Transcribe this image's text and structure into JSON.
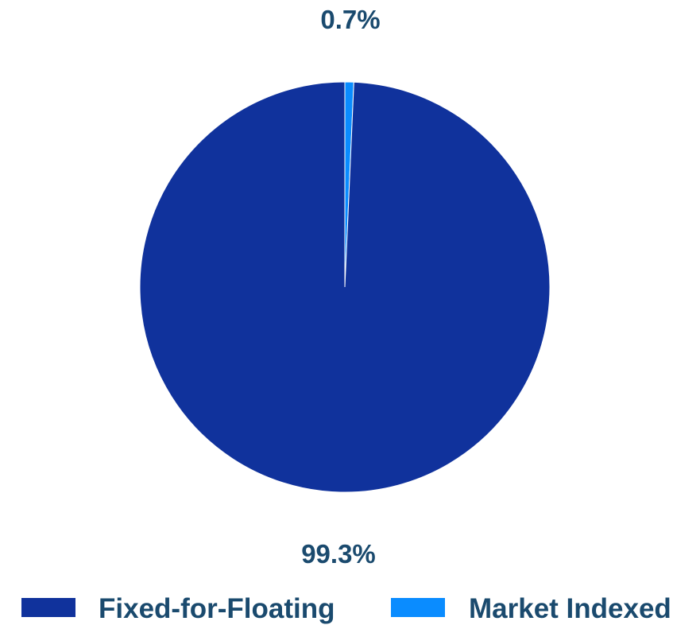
{
  "chart_data": {
    "type": "pie",
    "categories": [
      "Fixed-for-Floating",
      "Market Indexed"
    ],
    "values": [
      99.3,
      0.7
    ],
    "value_labels": [
      "99.3%",
      "0.7%"
    ],
    "colors": [
      "#10329c",
      "#0a8cff"
    ],
    "legend": {
      "placement": "bottom",
      "entries": [
        "Fixed-for-Floating",
        "Market Indexed"
      ]
    },
    "title": ""
  }
}
